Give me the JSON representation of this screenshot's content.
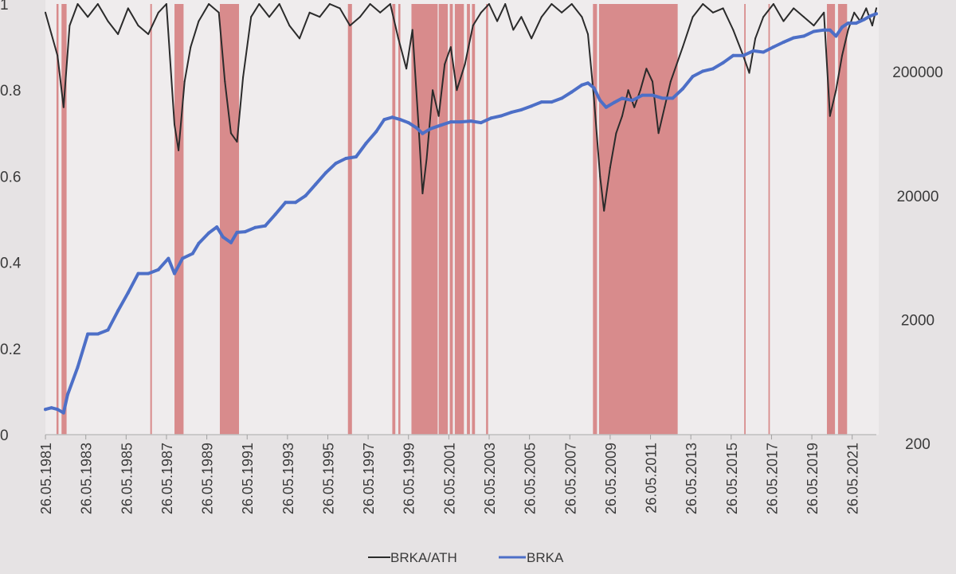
{
  "chart_data": {
    "type": "line",
    "title": "",
    "x_ticks": [
      "26.05.1981",
      "26.05.1983",
      "26.05.1985",
      "26.05.1987",
      "26.05.1989",
      "26.05.1991",
      "26.05.1993",
      "26.05.1995",
      "26.05.1997",
      "26.05.1999",
      "26.05.2001",
      "26.05.2003",
      "26.05.2005",
      "26.05.2007",
      "26.05.2009",
      "26.05.2011",
      "26.05.2013",
      "26.05.2015",
      "26.05.2017",
      "26.05.2019",
      "26.05.2021"
    ],
    "x_range": [
      1981.4,
      2022.6
    ],
    "y_left": {
      "ticks": [
        "0",
        "0.2",
        "0.4",
        "0.6",
        "0.8",
        "1"
      ],
      "ylim": [
        0,
        1
      ]
    },
    "y_right": {
      "scale": "log",
      "ticks": [
        "200",
        "2000",
        "20000",
        "200000"
      ],
      "ylim": [
        200,
        600000
      ]
    },
    "drawdown_shading": {
      "color": "#d47a7a",
      "periods": [
        [
          1981.95,
          1982.05
        ],
        [
          1982.2,
          1982.45
        ],
        [
          1986.6,
          1986.68
        ],
        [
          1987.8,
          1988.25
        ],
        [
          1990.05,
          1991.0
        ],
        [
          1996.4,
          1996.6
        ],
        [
          1998.6,
          1998.75
        ],
        [
          1998.9,
          1999.0
        ],
        [
          1999.55,
          2000.85
        ],
        [
          2000.9,
          2001.35
        ],
        [
          2001.45,
          2001.6
        ],
        [
          2001.7,
          2002.15
        ],
        [
          2002.3,
          2002.45
        ],
        [
          2002.55,
          2002.7
        ],
        [
          2003.25,
          2003.35
        ],
        [
          2008.55,
          2008.75
        ],
        [
          2008.85,
          2012.75
        ],
        [
          2016.05,
          2016.12
        ],
        [
          2017.25,
          2017.32
        ],
        [
          2020.15,
          2020.55
        ],
        [
          2020.7,
          2021.15
        ]
      ]
    },
    "series": [
      {
        "name": "BRKA/ATH",
        "axis": "left",
        "color": "#2b2b2b",
        "x": [
          1981.4,
          1981.7,
          1982.0,
          1982.3,
          1982.6,
          1983.0,
          1983.5,
          1984.0,
          1984.5,
          1985.0,
          1985.5,
          1986.0,
          1986.5,
          1987.0,
          1987.4,
          1987.8,
          1988.0,
          1988.3,
          1988.6,
          1989.0,
          1989.5,
          1990.0,
          1990.3,
          1990.6,
          1990.9,
          1991.2,
          1991.6,
          1992.0,
          1992.5,
          1993.0,
          1993.5,
          1994.0,
          1994.5,
          1995.0,
          1995.5,
          1996.0,
          1996.5,
          1997.0,
          1997.5,
          1998.0,
          1998.5,
          1998.9,
          1999.3,
          1999.6,
          1999.9,
          2000.1,
          2000.3,
          2000.6,
          2000.9,
          2001.2,
          2001.5,
          2001.8,
          2002.2,
          2002.6,
          2003.0,
          2003.4,
          2003.8,
          2004.2,
          2004.6,
          2005.0,
          2005.5,
          2006.0,
          2006.5,
          2007.0,
          2007.5,
          2008.0,
          2008.3,
          2008.6,
          2008.9,
          2009.1,
          2009.4,
          2009.7,
          2010.0,
          2010.3,
          2010.6,
          2010.9,
          2011.2,
          2011.5,
          2011.8,
          2012.1,
          2012.4,
          2012.7,
          2013.0,
          2013.5,
          2014.0,
          2014.5,
          2015.0,
          2015.5,
          2016.0,
          2016.3,
          2016.6,
          2017.0,
          2017.5,
          2018.0,
          2018.5,
          2019.0,
          2019.5,
          2020.0,
          2020.3,
          2020.6,
          2020.9,
          2021.2,
          2021.5,
          2021.8,
          2022.1,
          2022.4,
          2022.6
        ],
        "y": [
          0.98,
          0.93,
          0.88,
          0.76,
          0.95,
          1.0,
          0.97,
          1.0,
          0.96,
          0.93,
          0.99,
          0.95,
          0.93,
          0.98,
          1.0,
          0.72,
          0.66,
          0.82,
          0.9,
          0.96,
          1.0,
          0.98,
          0.82,
          0.7,
          0.68,
          0.83,
          0.97,
          1.0,
          0.97,
          1.0,
          0.95,
          0.92,
          0.98,
          0.97,
          1.0,
          0.99,
          0.95,
          0.97,
          1.0,
          0.98,
          1.0,
          0.92,
          0.85,
          0.94,
          0.72,
          0.56,
          0.64,
          0.8,
          0.74,
          0.86,
          0.9,
          0.8,
          0.86,
          0.95,
          0.98,
          1.0,
          0.96,
          1.0,
          0.94,
          0.97,
          0.92,
          0.97,
          1.0,
          0.98,
          1.0,
          0.97,
          0.93,
          0.78,
          0.6,
          0.52,
          0.62,
          0.7,
          0.74,
          0.8,
          0.76,
          0.8,
          0.85,
          0.82,
          0.7,
          0.76,
          0.82,
          0.86,
          0.9,
          0.97,
          1.0,
          0.98,
          0.99,
          0.94,
          0.88,
          0.84,
          0.92,
          0.97,
          1.0,
          0.96,
          0.99,
          0.97,
          0.95,
          0.98,
          0.74,
          0.8,
          0.88,
          0.94,
          0.98,
          0.96,
          0.99,
          0.95,
          0.99
        ]
      },
      {
        "name": "BRKA",
        "axis": "right",
        "color": "#4d6fc7",
        "x": [
          1981.4,
          1981.7,
          1982.0,
          1982.3,
          1982.5,
          1983.0,
          1983.5,
          1984.0,
          1984.5,
          1985.0,
          1985.5,
          1986.0,
          1986.5,
          1987.0,
          1987.5,
          1987.8,
          1988.2,
          1988.7,
          1989.0,
          1989.5,
          1989.9,
          1990.2,
          1990.6,
          1990.9,
          1991.3,
          1991.8,
          1992.3,
          1992.8,
          1993.3,
          1993.8,
          1994.3,
          1994.8,
          1995.3,
          1995.8,
          1996.3,
          1996.8,
          1997.3,
          1997.8,
          1998.2,
          1998.6,
          1999.0,
          1999.4,
          1999.8,
          2000.1,
          2000.5,
          2001.0,
          2001.5,
          2002.0,
          2002.5,
          2003.0,
          2003.5,
          2004.0,
          2004.5,
          2005.0,
          2005.5,
          2006.0,
          2006.5,
          2007.0,
          2007.5,
          2008.0,
          2008.3,
          2008.6,
          2008.9,
          2009.2,
          2009.6,
          2010.0,
          2010.5,
          2011.0,
          2011.5,
          2012.0,
          2012.5,
          2013.0,
          2013.5,
          2014.0,
          2014.5,
          2015.0,
          2015.5,
          2016.0,
          2016.5,
          2017.0,
          2017.5,
          2018.0,
          2018.5,
          2019.0,
          2019.5,
          2020.0,
          2020.3,
          2020.6,
          2020.9,
          2021.2,
          2021.6,
          2022.0,
          2022.3,
          2022.6
        ],
        "y": [
          320,
          330,
          320,
          300,
          420,
          700,
          1300,
          1300,
          1400,
          2000,
          2800,
          4000,
          4000,
          4300,
          5300,
          4000,
          5300,
          5800,
          7000,
          8500,
          9500,
          7900,
          7100,
          8600,
          8700,
          9400,
          9700,
          12000,
          15000,
          15000,
          17000,
          21000,
          26000,
          31000,
          34000,
          35000,
          45000,
          56000,
          70000,
          73000,
          70000,
          66000,
          60000,
          54000,
          59000,
          63000,
          67000,
          67000,
          68000,
          66000,
          72000,
          75000,
          80000,
          84000,
          90000,
          97000,
          97000,
          104000,
          117000,
          133000,
          138000,
          126000,
          100000,
          88000,
          96000,
          104000,
          100000,
          110000,
          110000,
          104000,
          104000,
          124000,
          156000,
          172000,
          180000,
          201000,
          230000,
          230000,
          251000,
          245000,
          270000,
          295000,
          320000,
          330000,
          360000,
          370000,
          370000,
          330000,
          390000,
          420000,
          420000,
          450000,
          480000,
          500000
        ]
      }
    ],
    "legend": {
      "position": "bottom"
    }
  }
}
